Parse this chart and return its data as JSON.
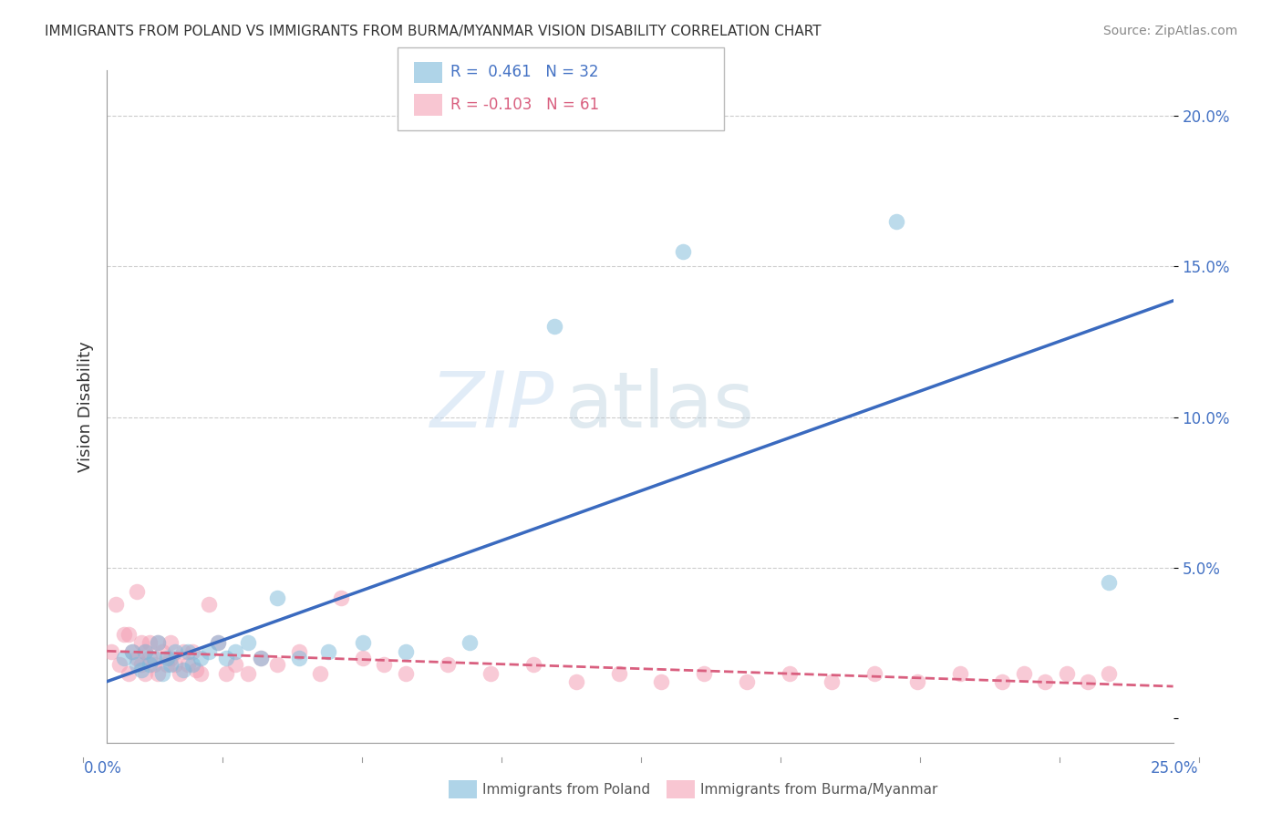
{
  "title": "IMMIGRANTS FROM POLAND VS IMMIGRANTS FROM BURMA/MYANMAR VISION DISABILITY CORRELATION CHART",
  "source": "Source: ZipAtlas.com",
  "ylabel": "Vision Disability",
  "xlim": [
    0.0,
    0.25
  ],
  "ylim": [
    -0.008,
    0.215
  ],
  "yticks": [
    0.0,
    0.05,
    0.1,
    0.15,
    0.2
  ],
  "ytick_labels": [
    "",
    "5.0%",
    "10.0%",
    "15.0%",
    "20.0%"
  ],
  "poland_color": "#7ab8d9",
  "burma_color": "#f4a0b5",
  "poland_line_color": "#3a6abf",
  "burma_line_color": "#d95f7f",
  "poland_x": [
    0.004,
    0.006,
    0.007,
    0.008,
    0.009,
    0.01,
    0.011,
    0.012,
    0.013,
    0.014,
    0.015,
    0.016,
    0.018,
    0.019,
    0.02,
    0.022,
    0.024,
    0.026,
    0.028,
    0.03,
    0.033,
    0.036,
    0.04,
    0.045,
    0.052,
    0.06,
    0.07,
    0.085,
    0.105,
    0.135,
    0.185,
    0.235
  ],
  "poland_y": [
    0.02,
    0.022,
    0.018,
    0.016,
    0.022,
    0.018,
    0.02,
    0.025,
    0.015,
    0.02,
    0.018,
    0.022,
    0.016,
    0.022,
    0.018,
    0.02,
    0.022,
    0.025,
    0.02,
    0.022,
    0.025,
    0.02,
    0.04,
    0.02,
    0.022,
    0.025,
    0.022,
    0.025,
    0.13,
    0.155,
    0.165,
    0.045
  ],
  "burma_x": [
    0.001,
    0.002,
    0.003,
    0.004,
    0.005,
    0.005,
    0.006,
    0.007,
    0.007,
    0.008,
    0.008,
    0.009,
    0.009,
    0.01,
    0.01,
    0.011,
    0.012,
    0.012,
    0.013,
    0.014,
    0.015,
    0.015,
    0.016,
    0.017,
    0.018,
    0.019,
    0.02,
    0.021,
    0.022,
    0.024,
    0.026,
    0.028,
    0.03,
    0.033,
    0.036,
    0.04,
    0.045,
    0.05,
    0.055,
    0.06,
    0.065,
    0.07,
    0.08,
    0.09,
    0.1,
    0.11,
    0.12,
    0.13,
    0.14,
    0.15,
    0.16,
    0.17,
    0.18,
    0.19,
    0.2,
    0.21,
    0.215,
    0.22,
    0.225,
    0.23,
    0.235
  ],
  "burma_y": [
    0.022,
    0.038,
    0.018,
    0.028,
    0.015,
    0.028,
    0.022,
    0.02,
    0.042,
    0.018,
    0.025,
    0.022,
    0.015,
    0.02,
    0.025,
    0.018,
    0.015,
    0.025,
    0.022,
    0.018,
    0.02,
    0.025,
    0.018,
    0.015,
    0.022,
    0.018,
    0.022,
    0.016,
    0.015,
    0.038,
    0.025,
    0.015,
    0.018,
    0.015,
    0.02,
    0.018,
    0.022,
    0.015,
    0.04,
    0.02,
    0.018,
    0.015,
    0.018,
    0.015,
    0.018,
    0.012,
    0.015,
    0.012,
    0.015,
    0.012,
    0.015,
    0.012,
    0.015,
    0.012,
    0.015,
    0.012,
    0.015,
    0.012,
    0.015,
    0.012,
    0.015
  ]
}
